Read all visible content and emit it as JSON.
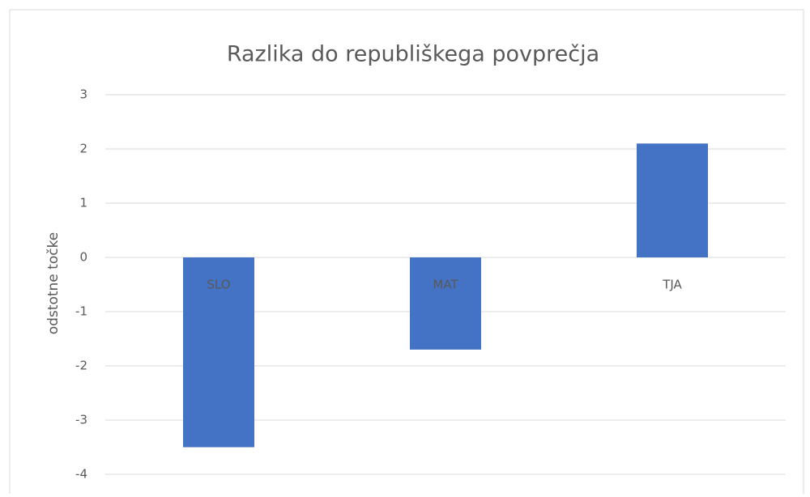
{
  "chart_data": {
    "type": "bar",
    "title": "Razlika do republiškega povprečja",
    "y_label": "odstotne točke",
    "categories": [
      "SLO",
      "MAT",
      "TJA"
    ],
    "values": [
      -3.5,
      -1.7,
      2.1
    ],
    "color": "#4472c4",
    "ylim": [
      -4,
      3
    ],
    "yticks": [
      -4,
      -3,
      -2,
      -1,
      0,
      1,
      2,
      3
    ],
    "grid": true
  }
}
